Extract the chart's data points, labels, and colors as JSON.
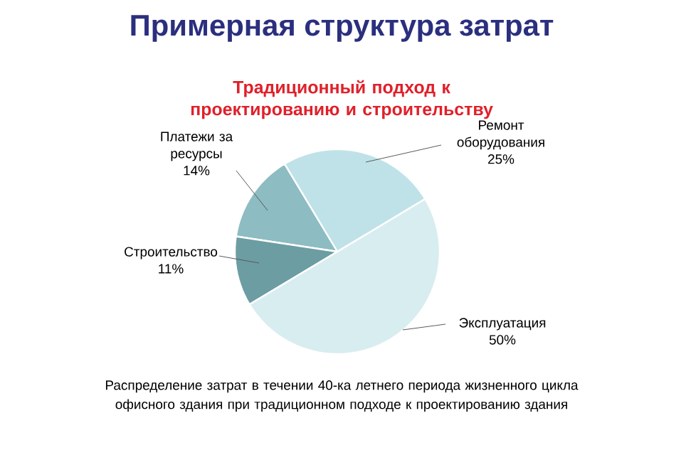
{
  "chart_data": {
    "type": "pie",
    "title": "Примерная структура затрат",
    "subtitle": "Традиционный подход к проектированию и строительству",
    "categories": [
      "Ремонт оборудования",
      "Платежи за ресурсы",
      "Строительство",
      "Эксплуатация"
    ],
    "values": [
      25,
      14,
      11,
      50
    ],
    "value_labels": [
      "25%",
      "14%",
      "11%",
      "50%"
    ],
    "colors": [
      "#bfe2e8",
      "#8dbcc2",
      "#6c9da3",
      "#d8edf0"
    ],
    "annotations": [
      "Распределение затрат в течении 40-ка летнего периода жизненного цикла офисного здания при традиционном подходе к проектированию здания"
    ]
  }
}
